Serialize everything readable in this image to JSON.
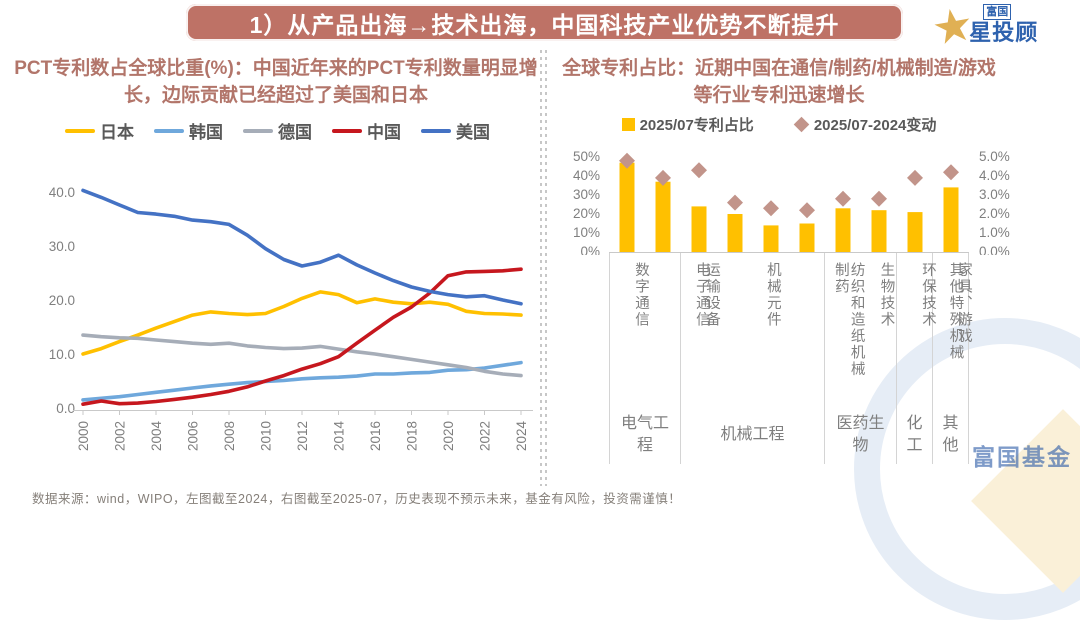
{
  "page": {
    "title": "1）从产品出海→技术出海，中国科技产业优势不断提升",
    "footer": "数据来源：wind，WIPO，左图截至2024，右图截至2025-07，历史表现不预示未来，基金有风险，投资需谨慎！"
  },
  "logo": {
    "brand_small": "富国",
    "brand_main": "星投顾",
    "watermark_text": "富国基金"
  },
  "colors": {
    "banner_bg": "#BE7266",
    "panel_title": "#B2756A",
    "axis_text": "#7F7F7F",
    "legend_text": "#595959",
    "bar": "#FFC000",
    "diamond": "#C2948A"
  },
  "chart_data": [
    {
      "type": "line",
      "title": "PCT专利数占全球比重(%)：中国近年来的PCT专利数量明显增长，边际贡献已经超过了美国和日本",
      "x_tick_labels": [
        "2000",
        "2002",
        "2004",
        "2006",
        "2008",
        "2010",
        "2012",
        "2014",
        "2016",
        "2018",
        "2020",
        "2022",
        "2024"
      ],
      "x_range": [
        2000,
        2024
      ],
      "ylim": [
        0,
        40
      ],
      "y_ticks": [
        "0.0",
        "10.0",
        "20.0",
        "30.0",
        "40.0"
      ],
      "grid": false,
      "legend_position": "top",
      "series": [
        {
          "name": "日本",
          "color": "#FFC000",
          "values": [
            10.0,
            11.0,
            12.3,
            13.5,
            14.8,
            16.0,
            17.2,
            17.8,
            17.5,
            17.3,
            17.5,
            18.8,
            20.3,
            21.5,
            21.0,
            19.5,
            20.2,
            19.6,
            19.3,
            19.6,
            19.2,
            17.9,
            17.5,
            17.4,
            17.2
          ]
        },
        {
          "name": "韩国",
          "color": "#6FA8DC",
          "values": [
            1.5,
            1.8,
            2.1,
            2.5,
            2.9,
            3.3,
            3.7,
            4.1,
            4.4,
            4.7,
            4.9,
            5.1,
            5.4,
            5.6,
            5.7,
            5.9,
            6.3,
            6.3,
            6.5,
            6.6,
            7.0,
            7.1,
            7.4,
            7.9,
            8.4
          ]
        },
        {
          "name": "德国",
          "color": "#A6ADB8",
          "values": [
            13.5,
            13.2,
            13.0,
            12.9,
            12.6,
            12.3,
            12.0,
            11.8,
            12.0,
            11.5,
            11.2,
            11.0,
            11.1,
            11.4,
            10.9,
            10.4,
            10.0,
            9.5,
            9.0,
            8.5,
            8.0,
            7.5,
            6.8,
            6.3,
            6.0
          ]
        },
        {
          "name": "中国",
          "color": "#C6171E",
          "values": [
            0.7,
            1.3,
            0.8,
            0.9,
            1.2,
            1.6,
            2.0,
            2.5,
            3.1,
            3.9,
            5.0,
            6.0,
            7.2,
            8.2,
            9.5,
            12.0,
            14.4,
            16.8,
            18.7,
            21.3,
            24.5,
            25.2,
            25.3,
            25.4,
            25.7
          ]
        },
        {
          "name": "美国",
          "color": "#4472C4",
          "values": [
            40.3,
            39.0,
            37.6,
            36.2,
            35.9,
            35.5,
            34.8,
            34.5,
            34.0,
            32.0,
            29.5,
            27.5,
            26.3,
            27.0,
            28.3,
            26.5,
            25.0,
            23.6,
            22.4,
            21.6,
            21.0,
            20.6,
            20.8,
            20.0,
            19.3
          ]
        }
      ]
    },
    {
      "type": "bar",
      "title": "全球专利占比：近期中国在通信/制药/机械制造/游戏等行业专利迅速增长",
      "categories": [
        "数字通信",
        "电子通信",
        "运输设备",
        "机械元件",
        "纺织和造纸机械",
        "其他特殊机械",
        "制药",
        "生物技术",
        "环保技术",
        "家具、游戏"
      ],
      "category_groups": [
        {
          "label": "电气工程",
          "span": 2
        },
        {
          "label": "机械工程",
          "span": 4
        },
        {
          "label": "医药生物",
          "span": 2
        },
        {
          "label": "化工",
          "span": 1
        },
        {
          "label": "其他",
          "span": 1
        }
      ],
      "left_axis": {
        "ticks": [
          "0%",
          "10%",
          "20%",
          "30%",
          "40%",
          "50%"
        ],
        "max": 50
      },
      "right_axis": {
        "ticks": [
          "0.0%",
          "1.0%",
          "2.0%",
          "3.0%",
          "4.0%",
          "5.0%"
        ],
        "max": 5
      },
      "grid": false,
      "legend_position": "top",
      "series": [
        {
          "name": "2025/07专利占比",
          "marker": "bar",
          "axis": "left",
          "color": "#FFC000",
          "values": [
            47,
            37,
            24,
            20,
            14,
            15,
            23,
            22,
            21,
            34
          ]
        },
        {
          "name": "2025/07-2024变动",
          "marker": "diamond",
          "axis": "right",
          "color": "#C2948A",
          "values": [
            4.8,
            3.9,
            4.3,
            2.6,
            2.3,
            2.2,
            2.8,
            2.8,
            3.9,
            4.2
          ]
        }
      ]
    }
  ]
}
